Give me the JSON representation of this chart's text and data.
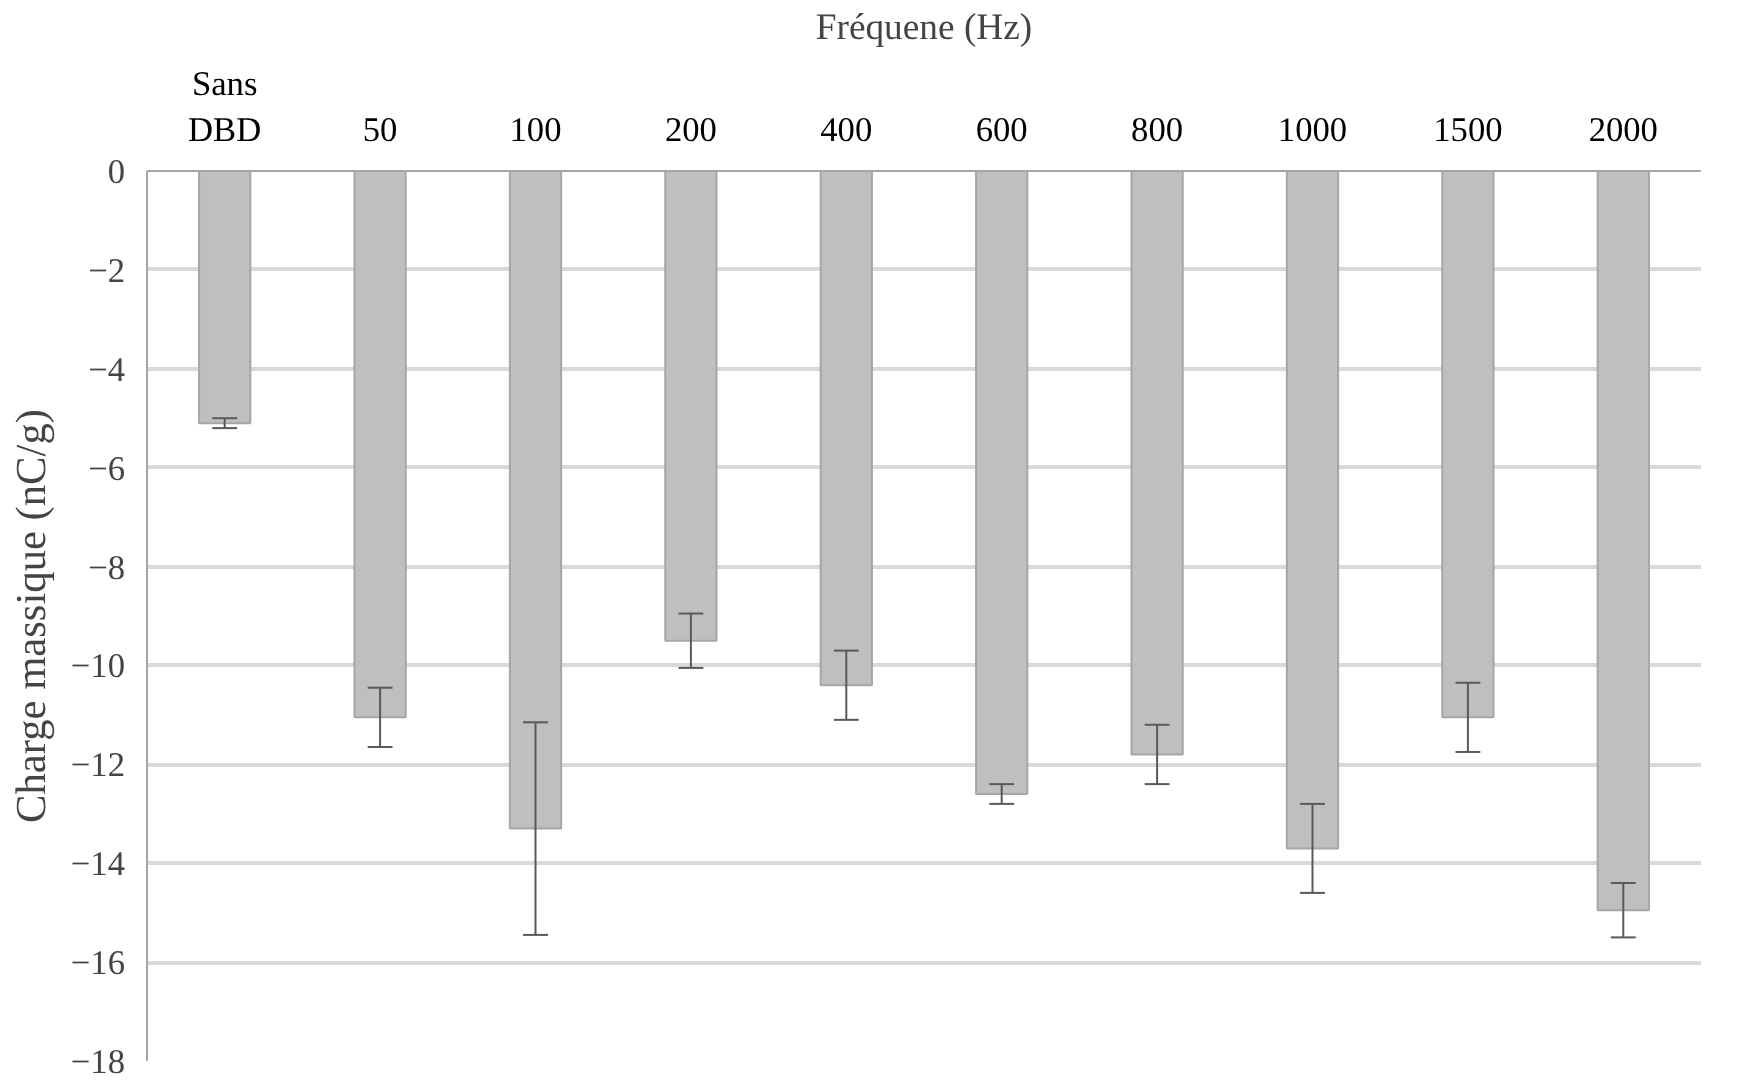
{
  "chart_data": {
    "type": "bar",
    "xlabel": "Fréquene (Hz)",
    "ylabel": "Charge massique (nC/g)",
    "categories": [
      "Sans DBD",
      "50",
      "100",
      "200",
      "400",
      "600",
      "800",
      "1000",
      "1500",
      "2000"
    ],
    "values": [
      -5.1,
      -11.05,
      -13.3,
      -9.5,
      -10.4,
      -12.6,
      -11.8,
      -13.7,
      -11.05,
      -14.95
    ],
    "errors": [
      0.1,
      0.6,
      2.15,
      0.55,
      0.7,
      0.2,
      0.6,
      0.9,
      0.7,
      0.55
    ],
    "color": "#bfbfbf",
    "ylim": [
      -18,
      0
    ],
    "yticks": [
      0,
      -2,
      -4,
      -6,
      -8,
      -10,
      -12,
      -14,
      -16,
      -18
    ],
    "grid": "y"
  }
}
